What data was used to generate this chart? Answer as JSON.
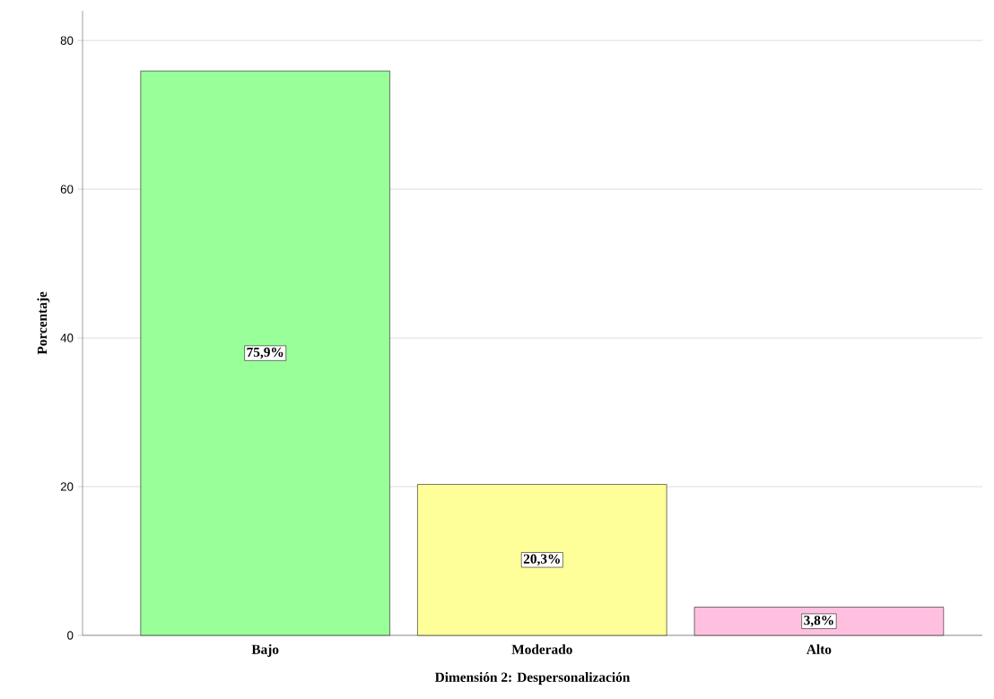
{
  "chart_data": {
    "type": "bar",
    "xlabel": "Dimensión 2: Despersonalización",
    "ylabel": "Porcentaje",
    "categories": [
      "Bajo",
      "Moderado",
      "Alto"
    ],
    "values": [
      75.9,
      20.3,
      3.8
    ],
    "colors": [
      "#99ff99",
      "#ffff99",
      "#ffc0e0"
    ],
    "value_labels": [
      "75,9%",
      "20,3%",
      "3,8%"
    ],
    "ylim": [
      0,
      84
    ],
    "yticks": [
      0,
      20,
      40,
      60,
      80
    ],
    "grid": "y"
  }
}
